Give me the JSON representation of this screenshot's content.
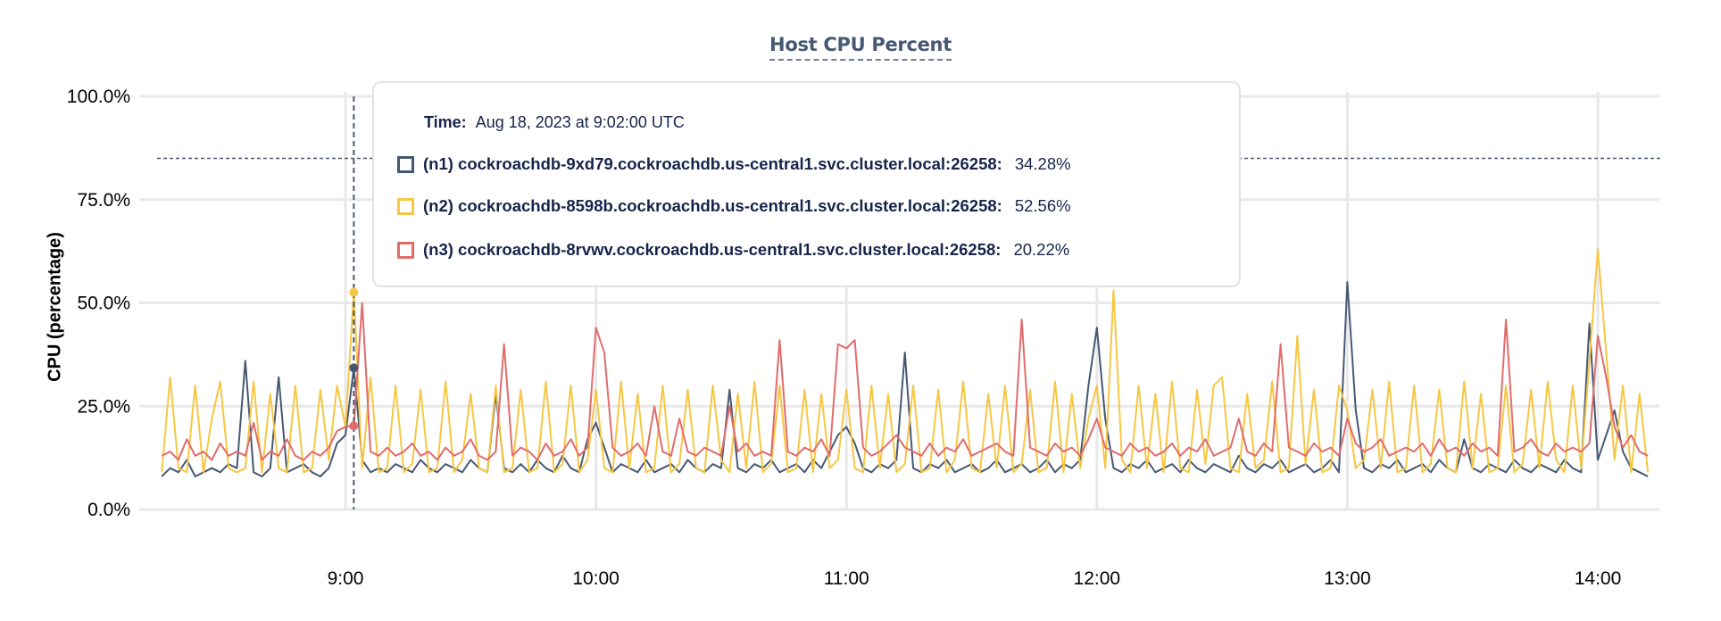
{
  "chart_data": {
    "type": "line",
    "title": "Host CPU Percent",
    "ylabel": "CPU (percentage)",
    "xlabel": "",
    "ylim": [
      0,
      100
    ],
    "y_ticks": [
      "0.0%",
      "25.0%",
      "50.0%",
      "75.0%",
      "100.0%"
    ],
    "y_tick_values": [
      0,
      25,
      50,
      75,
      100
    ],
    "x_ticks": [
      "9:00",
      "10:00",
      "11:00",
      "12:00",
      "13:00",
      "14:00"
    ],
    "x_start": "08:16",
    "x_end": "14:12",
    "x_step_minutes": 2,
    "grid": true,
    "threshold_line": 85,
    "series": [
      {
        "name": "(n1) cockroachdb-9xd79.cockroachdb.us-central1.svc.cluster.local:26258",
        "color": "#475872",
        "values": [
          8,
          10,
          9,
          12,
          8,
          9,
          10,
          9,
          11,
          10,
          36,
          9,
          8,
          10,
          32,
          9,
          10,
          11,
          9,
          8,
          10,
          16,
          18,
          34.28,
          12,
          9,
          10,
          9,
          11,
          10,
          9,
          12,
          10,
          9,
          11,
          10,
          9,
          12,
          10,
          9,
          28,
          10,
          9,
          11,
          9,
          12,
          10,
          9,
          13,
          10,
          9,
          17,
          21,
          15,
          9,
          11,
          10,
          9,
          12,
          9,
          10,
          11,
          9,
          12,
          10,
          9,
          11,
          10,
          29,
          10,
          9,
          11,
          10,
          12,
          9,
          10,
          11,
          9,
          12,
          10,
          14,
          18,
          20,
          16,
          10,
          9,
          11,
          10,
          12,
          38,
          10,
          9,
          11,
          10,
          12,
          9,
          10,
          11,
          9,
          10,
          12,
          9,
          10,
          11,
          9,
          10,
          12,
          9,
          11,
          10,
          12,
          30,
          44,
          22,
          10,
          9,
          11,
          10,
          12,
          9,
          10,
          11,
          9,
          12,
          10,
          9,
          11,
          10,
          9,
          13,
          10,
          9,
          11,
          10,
          12,
          9,
          10,
          11,
          9,
          10,
          12,
          9,
          55,
          24,
          10,
          9,
          11,
          10,
          12,
          9,
          10,
          11,
          9,
          12,
          10,
          9,
          17,
          10,
          9,
          11,
          10,
          9,
          12,
          10,
          9,
          11,
          10,
          9,
          12,
          10,
          9,
          45,
          12,
          18,
          24,
          14,
          10,
          9,
          8
        ]
      },
      {
        "name": "(n2) cockroachdb-8598b.cockroachdb.us-central1.svc.cluster.local:26258",
        "color": "#f6c744",
        "values": [
          9,
          32,
          10,
          9,
          30,
          9,
          22,
          31,
          10,
          9,
          10,
          31,
          9,
          28,
          10,
          9,
          30,
          9,
          10,
          29,
          12,
          30,
          20,
          52.56,
          10,
          32,
          9,
          10,
          30,
          9,
          11,
          29,
          9,
          10,
          31,
          9,
          12,
          28,
          10,
          9,
          30,
          9,
          10,
          29,
          9,
          10,
          31,
          9,
          11,
          30,
          9,
          12,
          29,
          10,
          9,
          31,
          10,
          28,
          9,
          10,
          30,
          9,
          11,
          29,
          10,
          9,
          30,
          12,
          9,
          28,
          10,
          31,
          9,
          11,
          30,
          9,
          10,
          29,
          9,
          28,
          10,
          12,
          29,
          10,
          9,
          30,
          10,
          28,
          9,
          11,
          30,
          9,
          10,
          29,
          9,
          12,
          31,
          10,
          9,
          28,
          10,
          30,
          9,
          11,
          29,
          9,
          10,
          31,
          9,
          28,
          10,
          22,
          30,
          10,
          53,
          12,
          9,
          30,
          10,
          28,
          9,
          31,
          10,
          9,
          29,
          11,
          30,
          32,
          10,
          9,
          28,
          10,
          12,
          31,
          9,
          10,
          42,
          11,
          29,
          9,
          10,
          30,
          24,
          10,
          12,
          29,
          10,
          31,
          9,
          10,
          30,
          9,
          11,
          29,
          10,
          9,
          31,
          10,
          28,
          9,
          10,
          30,
          9,
          11,
          29,
          10,
          31,
          12,
          9,
          30,
          10,
          36,
          63,
          38,
          12,
          30,
          9,
          28,
          9
        ]
      },
      {
        "name": "(n3) cockroachdb-8rvwv.cockroachdb.us-central1.svc.cluster.local:26258",
        "color": "#e06c6c",
        "values": [
          13,
          14,
          12,
          17,
          13,
          14,
          12,
          16,
          13,
          14,
          13,
          21,
          12,
          14,
          13,
          17,
          13,
          12,
          14,
          13,
          15,
          19,
          20,
          20.22,
          50,
          14,
          13,
          15,
          13,
          14,
          16,
          13,
          14,
          12,
          15,
          13,
          14,
          17,
          13,
          12,
          14,
          40,
          13,
          15,
          14,
          12,
          16,
          13,
          14,
          17,
          13,
          15,
          44,
          38,
          15,
          13,
          14,
          16,
          13,
          25,
          14,
          13,
          22,
          14,
          13,
          15,
          14,
          13,
          25,
          14,
          16,
          13,
          14,
          13,
          41,
          14,
          13,
          15,
          14,
          17,
          13,
          40,
          39,
          41,
          15,
          13,
          14,
          16,
          18,
          15,
          14,
          13,
          16,
          13,
          15,
          14,
          17,
          13,
          14,
          15,
          16,
          14,
          13,
          46,
          15,
          14,
          13,
          16,
          14,
          15,
          13,
          17,
          22,
          15,
          14,
          13,
          16,
          14,
          15,
          13,
          14,
          16,
          13,
          15,
          14,
          17,
          13,
          14,
          15,
          22,
          14,
          13,
          16,
          14,
          40,
          15,
          14,
          13,
          16,
          14,
          15,
          13,
          22,
          16,
          14,
          15,
          17,
          13,
          14,
          15,
          14,
          16,
          13,
          17,
          14,
          15,
          13,
          16,
          14,
          15,
          13,
          46,
          14,
          15,
          17,
          14,
          13,
          16,
          14,
          15,
          14,
          16,
          42,
          32,
          20,
          15,
          18,
          14,
          13
        ]
      }
    ],
    "hover": {
      "index": 23,
      "time_label": "Time:",
      "time_value": "Aug 18, 2023 at 9:02:00 UTC",
      "rows": [
        {
          "name": "(n1) cockroachdb-9xd79.cockroachdb.us-central1.svc.cluster.local:26258:",
          "value": "34.28%",
          "color": "#475872"
        },
        {
          "name": "(n2) cockroachdb-8598b.cockroachdb.us-central1.svc.cluster.local:26258:",
          "value": "52.56%",
          "color": "#f6c744"
        },
        {
          "name": "(n3) cockroachdb-8rvwv.cockroachdb.us-central1.svc.cluster.local:26258:",
          "value": "20.22%",
          "color": "#e06c6c"
        }
      ]
    }
  }
}
